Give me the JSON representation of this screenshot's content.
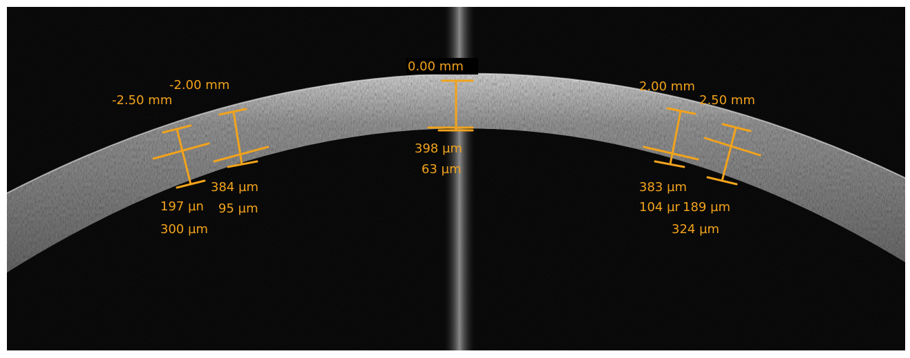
{
  "sites": [
    {
      "position": "-2.50 mm",
      "values": [
        "197 µn",
        "300 µm"
      ]
    },
    {
      "position": "-2.00 mm",
      "values": [
        "384 µm",
        "95 µm"
      ]
    },
    {
      "position": "0.00 mm",
      "values": [
        "398 µm",
        "63 µm"
      ]
    },
    {
      "position": "2.00 mm",
      "values": [
        "383 µm",
        "104 µr"
      ]
    },
    {
      "position": "2.50 mm",
      "values": [
        "189 µm",
        "324 µm"
      ]
    }
  ]
}
